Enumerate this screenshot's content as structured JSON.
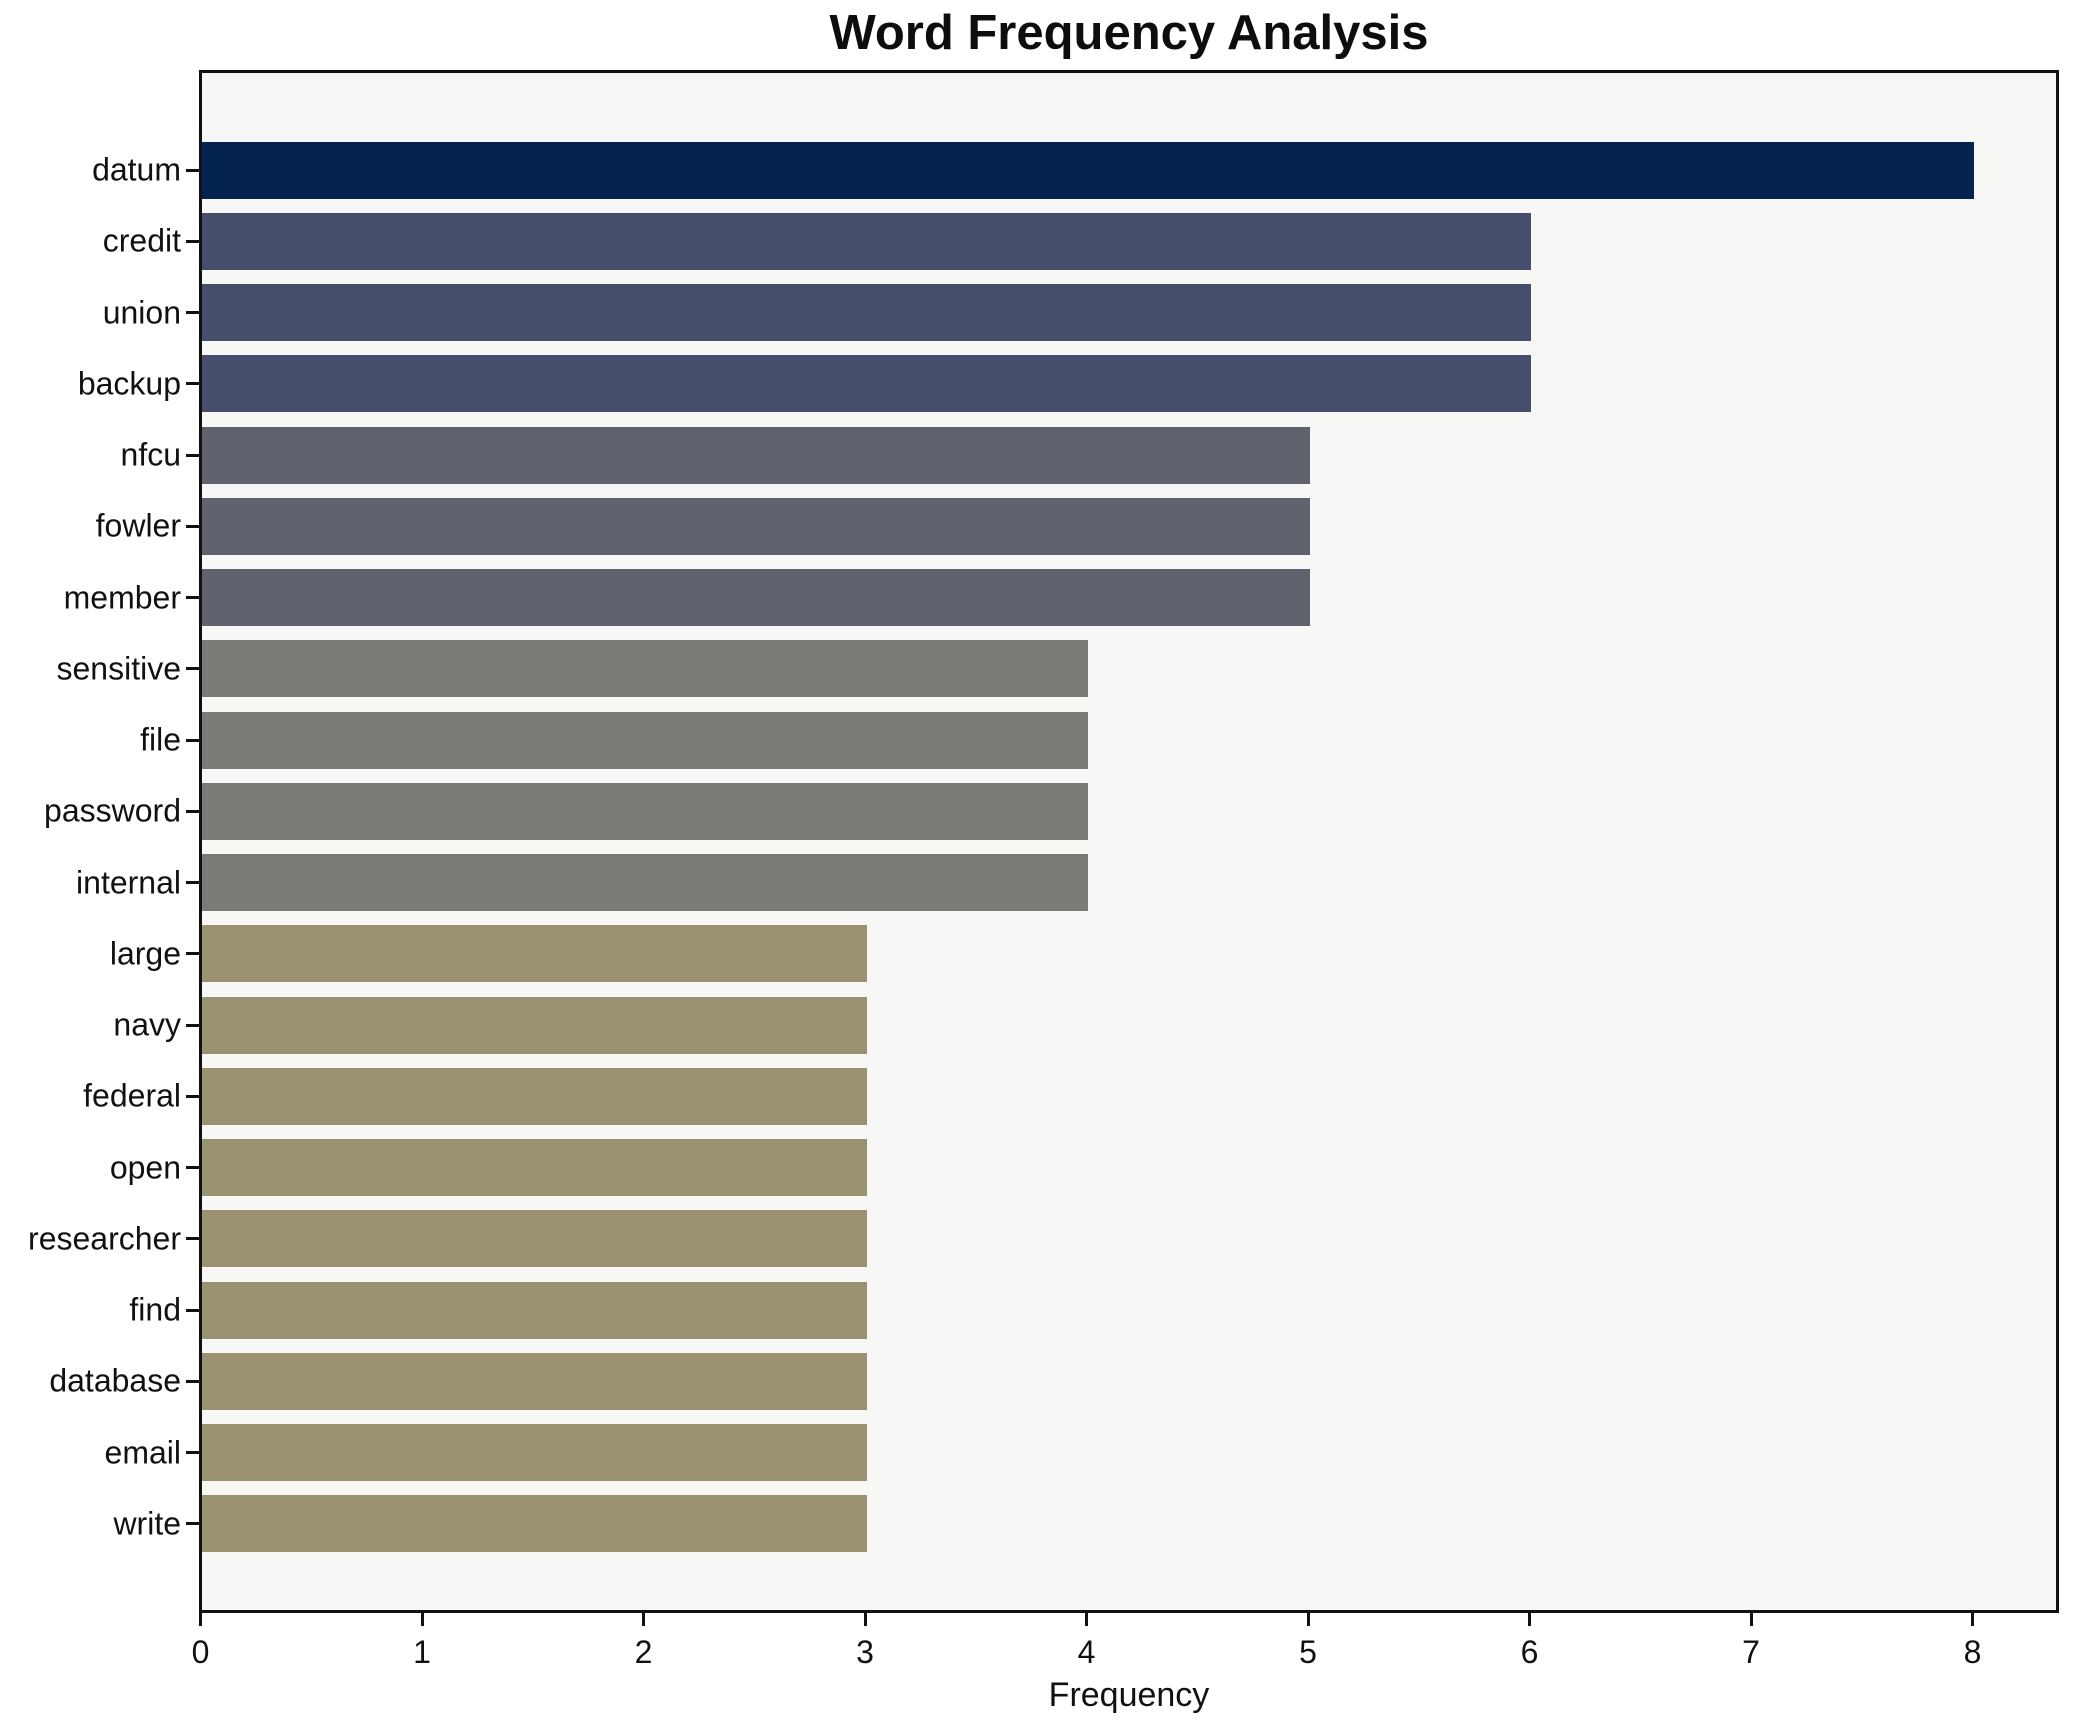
{
  "chart_data": {
    "type": "bar",
    "orientation": "horizontal",
    "title": "Word Frequency Analysis",
    "xlabel": "Frequency",
    "ylabel": "",
    "categories": [
      "datum",
      "credit",
      "union",
      "backup",
      "nfcu",
      "fowler",
      "member",
      "sensitive",
      "file",
      "password",
      "internal",
      "large",
      "navy",
      "federal",
      "open",
      "researcher",
      "find",
      "database",
      "email",
      "write"
    ],
    "values": [
      8,
      6,
      6,
      6,
      5,
      5,
      5,
      4,
      4,
      4,
      4,
      3,
      3,
      3,
      3,
      3,
      3,
      3,
      3,
      3
    ],
    "bar_colors": [
      "#04234e",
      "#454f6c",
      "#454f6c",
      "#454f6c",
      "#60636d",
      "#60636d",
      "#60636d",
      "#7b7a77",
      "#7b7a77",
      "#7b7a77",
      "#7b7a77",
      "#9a9170",
      "#9a9170",
      "#9a9170",
      "#9a9170",
      "#9a9170",
      "#9a9170",
      "#9a9170",
      "#9a9170",
      "#9a9170"
    ],
    "xticks": [
      "0",
      "1",
      "2",
      "3",
      "4",
      "5",
      "6",
      "7",
      "8"
    ],
    "xlim": [
      0,
      8.38
    ],
    "grid": false,
    "legend_position": "none",
    "plot_background": "#f7f7f6",
    "outer_background": "#ffffff",
    "spine_color": "#111111"
  }
}
